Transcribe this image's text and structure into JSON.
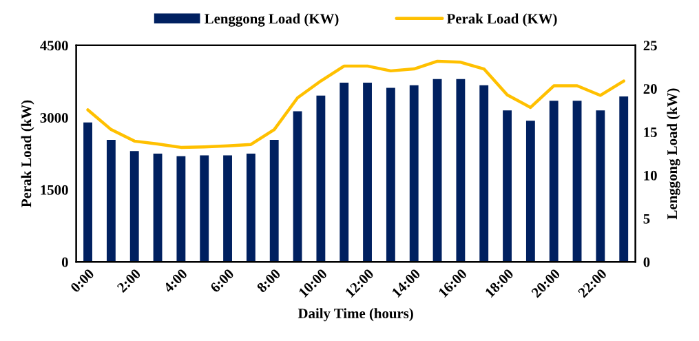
{
  "chart_data": {
    "type": "bar",
    "xlabel": "Daily Time (hours)",
    "ylabel": "Perak Load (kW)",
    "y2label": "Lenggong Load (kW)",
    "categories": [
      "0:00",
      null,
      "2:00",
      null,
      "4:00",
      null,
      "6:00",
      null,
      "8:00",
      null,
      "10:00",
      null,
      "12:00",
      null,
      "14:00",
      null,
      "16:00",
      null,
      "18:00",
      null,
      "20:00",
      null,
      "22:00",
      null
    ],
    "series": [
      {
        "name": "Lenggong Load (KW)",
        "axis": "y2",
        "color": "#002060",
        "values": [
          16.1,
          14.1,
          12.8,
          12.5,
          12.2,
          12.3,
          12.3,
          12.5,
          14.1,
          17.4,
          19.2,
          20.7,
          20.7,
          20.1,
          20.4,
          21.1,
          21.1,
          20.4,
          17.5,
          16.3,
          18.6,
          18.6,
          17.5,
          19.1
        ]
      },
      {
        "name": "Perak Load (KW)",
        "type": "line",
        "axis": "y",
        "color": "#ffc000",
        "values": [
          3160,
          2750,
          2510,
          2450,
          2380,
          2390,
          2410,
          2440,
          2750,
          3410,
          3760,
          4070,
          4070,
          3970,
          4010,
          4170,
          4150,
          4010,
          3470,
          3210,
          3660,
          3660,
          3460,
          3760
        ]
      }
    ],
    "ylim": [
      0,
      4500
    ],
    "yticks": [
      0,
      1500,
      3000,
      4500
    ],
    "y2lim": [
      0,
      25
    ],
    "y2ticks": [
      0,
      5,
      10,
      15,
      20,
      25
    ],
    "grid": false,
    "legend": "top",
    "marker": "none",
    "line_style": "solid"
  }
}
